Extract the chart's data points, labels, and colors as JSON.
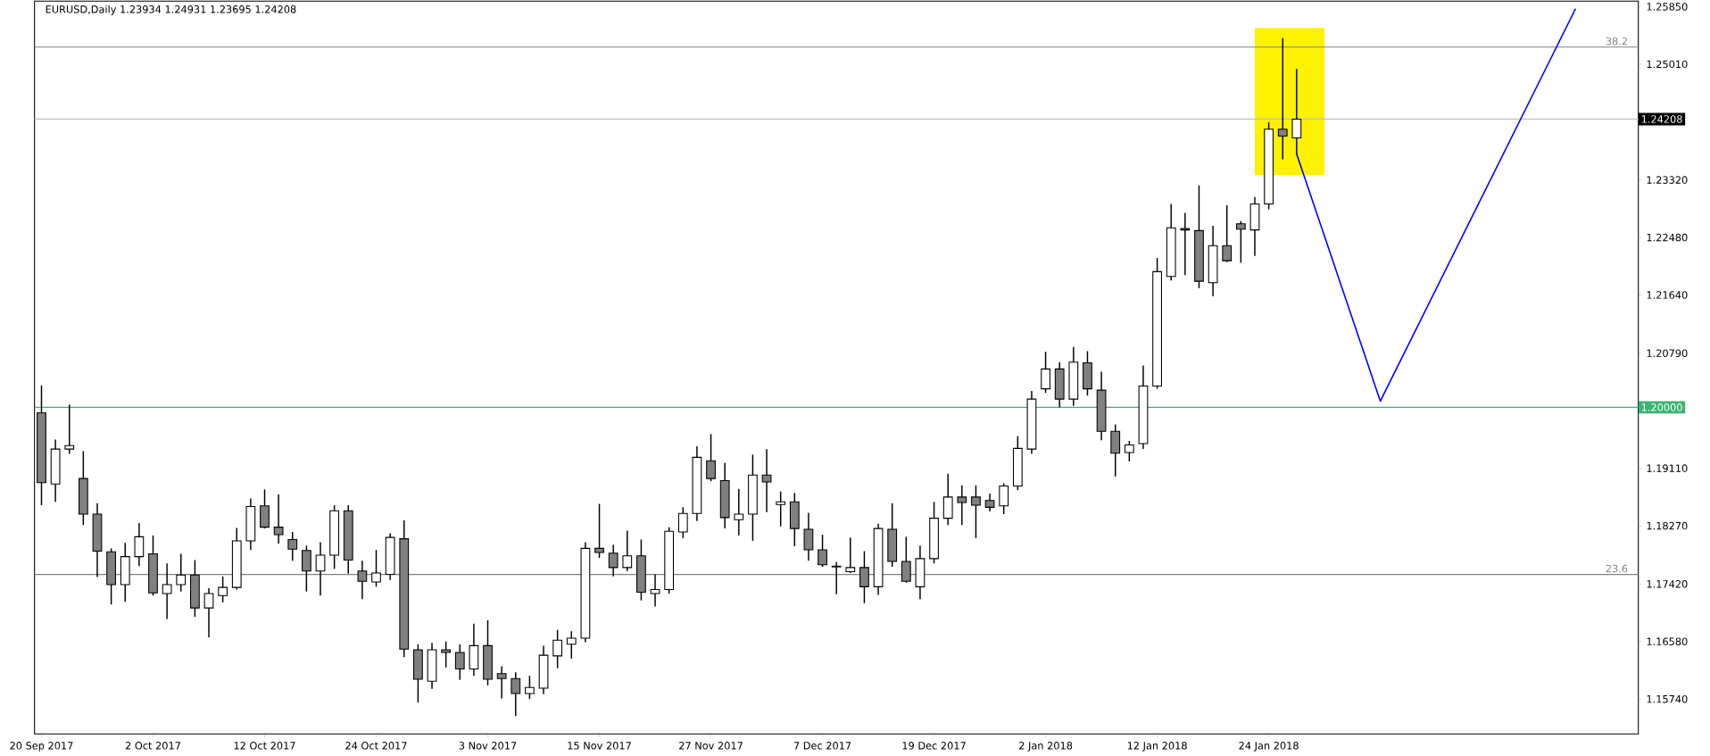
{
  "chart_data": {
    "type": "candlestick",
    "title": "EURUSD,Daily  1.23934 1.24931 1.23695 1.24208",
    "categories": [
      "20 Sep 2017",
      null,
      null,
      null,
      null,
      null,
      null,
      null,
      "2 Oct 2017",
      null,
      null,
      null,
      null,
      null,
      null,
      null,
      "12 Oct 2017",
      null,
      null,
      null,
      null,
      null,
      null,
      null,
      "24 Oct 2017",
      null,
      null,
      null,
      null,
      null,
      null,
      null,
      "3 Nov 2017",
      null,
      null,
      null,
      null,
      null,
      null,
      null,
      "15 Nov 2017",
      null,
      null,
      null,
      null,
      null,
      null,
      null,
      "27 Nov 2017",
      null,
      null,
      null,
      null,
      null,
      null,
      null,
      "7 Dec 2017",
      null,
      null,
      null,
      null,
      null,
      null,
      null,
      "19 Dec 2017",
      null,
      null,
      null,
      null,
      null,
      null,
      null,
      "2 Jan 2018",
      null,
      null,
      null,
      null,
      null,
      null,
      null,
      "12 Jan 2018",
      null,
      null,
      null,
      null,
      null,
      null,
      null,
      "24 Jan 2018",
      null,
      null,
      null,
      null,
      null,
      null,
      null,
      null,
      null,
      null,
      null,
      null,
      null,
      null,
      null,
      null,
      null,
      null,
      null,
      null,
      null,
      null,
      null,
      null,
      null,
      null
    ],
    "ohlc": [
      [
        1.1992,
        1.2031,
        1.1858,
        1.189
      ],
      [
        1.1888,
        1.1952,
        1.1863,
        1.1939
      ],
      [
        1.1939,
        1.2003,
        1.1933,
        1.1944
      ],
      [
        1.1896,
        1.1935,
        1.1829,
        1.1844
      ],
      [
        1.1844,
        1.1859,
        1.1753,
        1.179
      ],
      [
        1.1789,
        1.1793,
        1.1713,
        1.1741
      ],
      [
        1.1741,
        1.1801,
        1.1717,
        1.1782
      ],
      [
        1.1782,
        1.183,
        1.1769,
        1.1811
      ],
      [
        1.1786,
        1.1812,
        1.1726,
        1.1729
      ],
      [
        1.1728,
        1.1771,
        1.1692,
        1.1741
      ],
      [
        1.1741,
        1.1785,
        1.1732,
        1.1755
      ],
      [
        1.1755,
        1.1776,
        1.1695,
        1.1707
      ],
      [
        1.1707,
        1.1735,
        1.1665,
        1.1728
      ],
      [
        1.1725,
        1.1752,
        1.1716,
        1.1737
      ],
      [
        1.1737,
        1.1823,
        1.1735,
        1.1805
      ],
      [
        1.1805,
        1.1866,
        1.1793,
        1.1855
      ],
      [
        1.1856,
        1.1879,
        1.1824,
        1.1825
      ],
      [
        1.1825,
        1.1872,
        1.1802,
        1.1814
      ],
      [
        1.1807,
        1.1817,
        1.1777,
        1.1793
      ],
      [
        1.1791,
        1.1797,
        1.1732,
        1.1761
      ],
      [
        1.1761,
        1.1802,
        1.1726,
        1.1784
      ],
      [
        1.1784,
        1.1856,
        1.1765,
        1.1849
      ],
      [
        1.1849,
        1.1856,
        1.1758,
        1.1777
      ],
      [
        1.1761,
        1.1775,
        1.1721,
        1.1746
      ],
      [
        1.1745,
        1.1791,
        1.1739,
        1.1758
      ],
      [
        1.1756,
        1.1815,
        1.1749,
        1.181
      ],
      [
        1.1808,
        1.1834,
        1.1636,
        1.1647
      ],
      [
        1.1646,
        1.1653,
        1.157,
        1.1603
      ],
      [
        1.16,
        1.1655,
        1.159,
        1.1646
      ],
      [
        1.1646,
        1.1657,
        1.1621,
        1.1642
      ],
      [
        1.1642,
        1.1653,
        1.1603,
        1.1618
      ],
      [
        1.1618,
        1.1683,
        1.1609,
        1.1652
      ],
      [
        1.1652,
        1.1688,
        1.1595,
        1.1603
      ],
      [
        1.1611,
        1.1621,
        1.1576,
        1.1604
      ],
      [
        1.1604,
        1.1612,
        1.155,
        1.1582
      ],
      [
        1.1582,
        1.1607,
        1.1575,
        1.1591
      ],
      [
        1.159,
        1.1651,
        1.1582,
        1.1638
      ],
      [
        1.1637,
        1.1674,
        1.162,
        1.166
      ],
      [
        1.1654,
        1.1672,
        1.1634,
        1.1663
      ],
      [
        1.1663,
        1.1802,
        1.1658,
        1.1794
      ],
      [
        1.1794,
        1.1858,
        1.1781,
        1.1788
      ],
      [
        1.1787,
        1.1798,
        1.1754,
        1.1766
      ],
      [
        1.1766,
        1.1819,
        1.1762,
        1.1783
      ],
      [
        1.1783,
        1.1806,
        1.1719,
        1.173
      ],
      [
        1.1728,
        1.1755,
        1.171,
        1.1734
      ],
      [
        1.1734,
        1.1824,
        1.1729,
        1.1819
      ],
      [
        1.1818,
        1.1853,
        1.181,
        1.1845
      ],
      [
        1.1845,
        1.1942,
        1.1835,
        1.1927
      ],
      [
        1.1922,
        1.196,
        1.1893,
        1.1896
      ],
      [
        1.1893,
        1.1918,
        1.1824,
        1.1839
      ],
      [
        1.1836,
        1.188,
        1.1814,
        1.1844
      ],
      [
        1.1844,
        1.193,
        1.1806,
        1.1901
      ],
      [
        1.1901,
        1.1938,
        1.1848,
        1.1891
      ],
      [
        1.1858,
        1.1876,
        1.1827,
        1.1862
      ],
      [
        1.1862,
        1.1874,
        1.1798,
        1.1823
      ],
      [
        1.1822,
        1.1845,
        1.1777,
        1.1792
      ],
      [
        1.1792,
        1.1813,
        1.1768,
        1.177
      ],
      [
        1.1768,
        1.1773,
        1.1728,
        1.1767
      ],
      [
        1.176,
        1.1809,
        1.1759,
        1.1766
      ],
      [
        1.1766,
        1.1789,
        1.1715,
        1.1738
      ],
      [
        1.1738,
        1.1829,
        1.1727,
        1.1823
      ],
      [
        1.1822,
        1.1859,
        1.1768,
        1.1775
      ],
      [
        1.1775,
        1.181,
        1.1745,
        1.1746
      ],
      [
        1.1738,
        1.1797,
        1.1721,
        1.1779
      ],
      [
        1.1779,
        1.1861,
        1.1773,
        1.1838
      ],
      [
        1.1838,
        1.1902,
        1.1829,
        1.1869
      ],
      [
        1.1869,
        1.1885,
        1.1829,
        1.1861
      ],
      [
        1.1869,
        1.1885,
        1.181,
        1.1857
      ],
      [
        1.1864,
        1.1873,
        1.1849,
        1.1854
      ],
      [
        1.1856,
        1.1888,
        1.1845,
        1.1885
      ],
      [
        1.1885,
        1.1957,
        1.188,
        1.194
      ],
      [
        1.1939,
        1.2023,
        1.1933,
        1.2012
      ],
      [
        1.2027,
        1.208,
        1.2022,
        1.2056
      ],
      [
        1.2056,
        1.2065,
        1.2001,
        1.2012
      ],
      [
        1.2012,
        1.2087,
        1.2003,
        1.2066
      ],
      [
        1.2065,
        1.2081,
        1.2018,
        1.2027
      ],
      [
        1.2025,
        1.2051,
        1.1953,
        1.1965
      ],
      [
        1.1965,
        1.1974,
        1.19,
        1.1933
      ],
      [
        1.1934,
        1.195,
        1.1922,
        1.1945
      ],
      [
        1.1947,
        1.206,
        1.194,
        1.2031
      ],
      [
        1.2031,
        1.2217,
        1.2028,
        1.2198
      ],
      [
        1.2191,
        1.2296,
        1.2186,
        1.2262
      ],
      [
        1.2261,
        1.2283,
        1.2194,
        1.2259
      ],
      [
        1.2258,
        1.2323,
        1.2175,
        1.2184
      ],
      [
        1.2182,
        1.2264,
        1.2163,
        1.2236
      ],
      [
        1.2236,
        1.2294,
        1.2213,
        1.2214
      ],
      [
        1.2268,
        1.2271,
        1.2212,
        1.226
      ],
      [
        1.2259,
        1.2306,
        1.2222,
        1.2297
      ],
      [
        1.2297,
        1.2415,
        1.229,
        1.2406
      ],
      [
        1.2406,
        1.2538,
        1.2363,
        1.2396
      ],
      [
        1.23934,
        1.24931,
        1.23695,
        1.24208
      ],
      null,
      null,
      null,
      null,
      null,
      null,
      null,
      null,
      null,
      null,
      null,
      null,
      null,
      null,
      null,
      null,
      null,
      null,
      null,
      null,
      null,
      null,
      null,
      null
    ],
    "series": [
      {
        "type": "line",
        "color": "#0000ff",
        "values": [
          null,
          null,
          null,
          null,
          null,
          null,
          null,
          null,
          null,
          null,
          null,
          null,
          null,
          null,
          null,
          null,
          null,
          null,
          null,
          null,
          null,
          null,
          null,
          null,
          null,
          null,
          null,
          null,
          null,
          null,
          null,
          null,
          null,
          null,
          null,
          null,
          null,
          null,
          null,
          null,
          null,
          null,
          null,
          null,
          null,
          null,
          null,
          null,
          null,
          null,
          null,
          null,
          null,
          null,
          null,
          null,
          null,
          null,
          null,
          null,
          null,
          null,
          null,
          null,
          null,
          null,
          null,
          null,
          null,
          null,
          null,
          null,
          null,
          null,
          null,
          null,
          null,
          null,
          null,
          null,
          null,
          null,
          null,
          null,
          null,
          null,
          null,
          null,
          null,
          null,
          1.237,
          null,
          null,
          null,
          null,
          null,
          1.2009,
          null,
          null,
          null,
          null,
          null,
          null,
          null,
          null,
          null,
          null,
          null,
          null,
          null,
          1.2582,
          null,
          null,
          null,
          null
        ]
      }
    ],
    "ylim": [
      1.1523,
      1.2593
    ],
    "yticks": [
      {
        "value": 1.2585,
        "label": "1.25850"
      },
      {
        "value": 1.2501,
        "label": "1.25010"
      },
      {
        "value": 1.2332,
        "label": "1.23320"
      },
      {
        "value": 1.2248,
        "label": "1.22480"
      },
      {
        "value": 1.2164,
        "label": "1.21640"
      },
      {
        "value": 1.2079,
        "label": "1.20790"
      },
      {
        "value": 1.1911,
        "label": "1.19110"
      },
      {
        "value": 1.1827,
        "label": "1.18270"
      },
      {
        "value": 1.1742,
        "label": "1.17420"
      },
      {
        "value": 1.1658,
        "label": "1.16580"
      },
      {
        "value": 1.1574,
        "label": "1.15740"
      }
    ],
    "annotations": [
      {
        "text": "38.2",
        "y": 1.2526
      },
      {
        "text": "23.6",
        "y": 1.1756
      }
    ],
    "ref_lines": [
      {
        "axis": "y",
        "value": 1.2526,
        "color": "#808080"
      },
      {
        "axis": "y",
        "value": 1.24208,
        "label": "1.24208",
        "color": "#c0c0c0"
      },
      {
        "axis": "y",
        "value": 1.2,
        "label": "1.20000",
        "color": "#3cb371"
      },
      {
        "axis": "y",
        "value": 1.1756,
        "color": "#808080"
      }
    ],
    "grid": false
  }
}
